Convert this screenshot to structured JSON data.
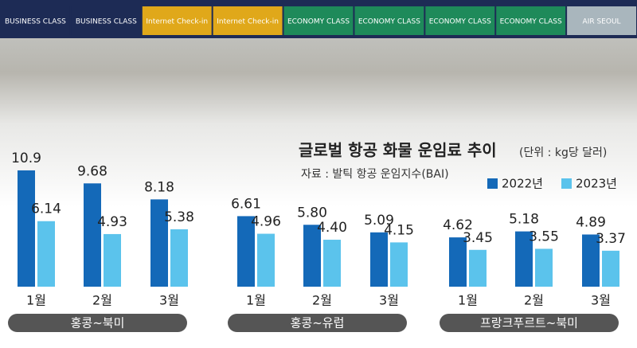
{
  "title": "글로벌 항공 화물 운임료 추이",
  "unit": "(단위 : kg당 달러)",
  "source": "자료 : 발틱 항공 운임지수(BAI)",
  "photo_signs": [
    "BUSINESS CLASS",
    "BUSINESS CLASS",
    "Internet Check-in",
    "Internet Check-in",
    "ECONOMY CLASS",
    "ECONOMY CLASS",
    "ECONOMY CLASS",
    "ECONOMY CLASS",
    "AIR SEOUL"
  ],
  "chart_data": [
    {
      "type": "bar",
      "title": "홍콩~북미",
      "categories": [
        "1월",
        "2월",
        "3월"
      ],
      "series": [
        {
          "name": "2022년",
          "color": "#1469b8",
          "values": [
            10.9,
            9.68,
            8.18
          ],
          "value_labels": [
            "10.9",
            "9.68",
            "8.18"
          ]
        },
        {
          "name": "2023년",
          "color": "#5bc3ec",
          "values": [
            6.14,
            4.93,
            5.38
          ],
          "value_labels": [
            "6.14",
            "4.93",
            "5.38"
          ]
        }
      ]
    },
    {
      "type": "bar",
      "title": "홍콩~유럽",
      "categories": [
        "1월",
        "2월",
        "3월"
      ],
      "series": [
        {
          "name": "2022년",
          "color": "#1469b8",
          "values": [
            6.61,
            5.8,
            5.09
          ],
          "value_labels": [
            "6.61",
            "5.80",
            "5.09"
          ]
        },
        {
          "name": "2023년",
          "color": "#5bc3ec",
          "values": [
            4.96,
            4.4,
            4.15
          ],
          "value_labels": [
            "4.96",
            "4.40",
            "4.15"
          ]
        }
      ]
    },
    {
      "type": "bar",
      "title": "프랑크푸르트~북미",
      "categories": [
        "1월",
        "2월",
        "3월"
      ],
      "series": [
        {
          "name": "2022년",
          "color": "#1469b8",
          "values": [
            4.62,
            5.18,
            4.89
          ],
          "value_labels": [
            "4.62",
            "5.18",
            "4.89"
          ]
        },
        {
          "name": "2023년",
          "color": "#5bc3ec",
          "values": [
            3.45,
            3.55,
            3.37
          ],
          "value_labels": [
            "3.45",
            "3.55",
            "3.37"
          ]
        }
      ]
    }
  ]
}
